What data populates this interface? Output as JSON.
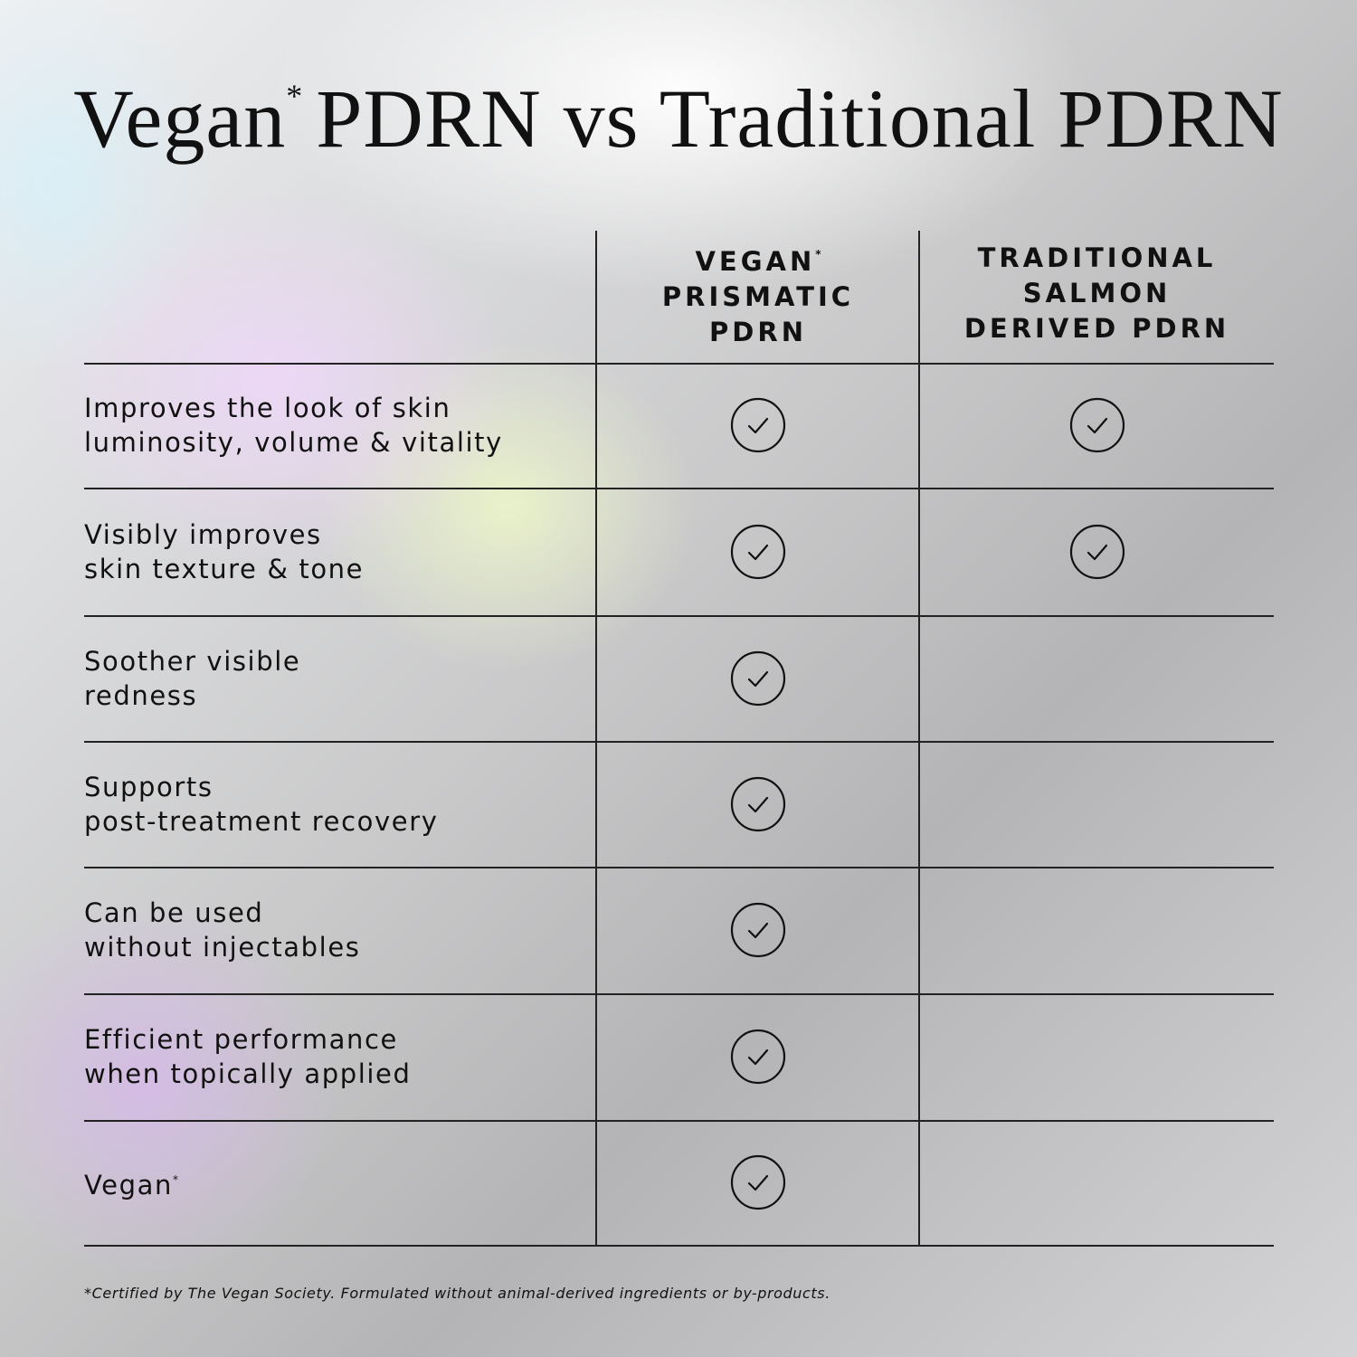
{
  "title": {
    "first": "Vegan",
    "asterisk": "*",
    "rest": "PDRN vs Traditional PDRN"
  },
  "columns": [
    {
      "lines": [
        "VEGAN",
        "PRISMATIC",
        "PDRN"
      ],
      "asterisk": "*"
    },
    {
      "lines": [
        "TRADITIONAL",
        "SALMON",
        "DERIVED PDRN"
      ]
    }
  ],
  "rows": [
    {
      "lines": [
        "Improves the look of skin",
        "luminosity, volume & vitality"
      ],
      "checks": [
        true,
        true
      ]
    },
    {
      "lines": [
        "Visibly improves",
        "skin texture & tone"
      ],
      "checks": [
        true,
        true
      ]
    },
    {
      "lines": [
        "Soother visible",
        "redness"
      ],
      "checks": [
        true,
        false
      ]
    },
    {
      "lines": [
        "Supports",
        "post-treatment recovery"
      ],
      "checks": [
        true,
        false
      ]
    },
    {
      "lines": [
        "Can be used",
        "without injectables"
      ],
      "checks": [
        true,
        false
      ]
    },
    {
      "lines": [
        "Efficient performance",
        "when topically applied"
      ],
      "checks": [
        true,
        false
      ]
    },
    {
      "lines": [
        "Vegan"
      ],
      "asterisk": "*",
      "checks": [
        true,
        false
      ]
    }
  ],
  "footnote": "*Certified by The Vegan Society. Formulated without animal-derived ingredients or by-products."
}
